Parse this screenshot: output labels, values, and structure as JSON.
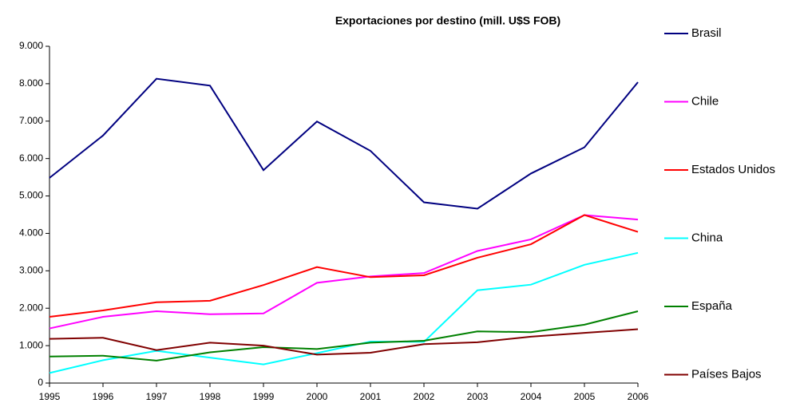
{
  "chart_data": {
    "type": "line",
    "title": "Exportaciones por destino (mill. U$S FOB)",
    "categories": [
      "1995",
      "1996",
      "1997",
      "1998",
      "1999",
      "2000",
      "2001",
      "2002",
      "2003",
      "2004",
      "2005",
      "2006"
    ],
    "series": [
      {
        "name": "Brasil",
        "color": "#000080",
        "values": [
          5484,
          6615,
          8133,
          7949,
          5690,
          6990,
          6206,
          4830,
          4660,
          5600,
          6300,
          8040
        ]
      },
      {
        "name": "Chile",
        "color": "#ff00ff",
        "values": [
          1460,
          1770,
          1920,
          1840,
          1860,
          2680,
          2850,
          2940,
          3530,
          3840,
          4490,
          4370
        ]
      },
      {
        "name": "Estados Unidos",
        "color": "#ff0000",
        "values": [
          1770,
          1940,
          2160,
          2200,
          2620,
          3100,
          2830,
          2880,
          3350,
          3710,
          4490,
          4040
        ]
      },
      {
        "name": "China",
        "color": "#00ffff",
        "values": [
          270,
          610,
          860,
          680,
          500,
          800,
          1110,
          1100,
          2480,
          2630,
          3160,
          3480
        ]
      },
      {
        "name": "España",
        "color": "#008000",
        "values": [
          710,
          730,
          600,
          820,
          960,
          910,
          1080,
          1130,
          1380,
          1360,
          1560,
          1920
        ]
      },
      {
        "name": "Países Bajos",
        "color": "#800000",
        "values": [
          1180,
          1210,
          880,
          1080,
          1000,
          760,
          810,
          1040,
          1090,
          1240,
          1340,
          1440
        ]
      }
    ],
    "ylim": [
      0,
      9000
    ],
    "yticks": [
      0,
      {
        "value": 1000,
        "label": "1.000"
      },
      {
        "value": 2000,
        "label": "2.000"
      },
      {
        "value": 3000,
        "label": "3.000"
      },
      {
        "value": 4000,
        "label": "4.000"
      },
      {
        "value": 5000,
        "label": "5.000"
      },
      {
        "value": 6000,
        "label": "6.000"
      },
      {
        "value": 7000,
        "label": "7.000"
      },
      {
        "value": 8000,
        "label": "8.000"
      },
      {
        "value": 9000,
        "label": "9.000"
      }
    ],
    "grid": false,
    "legend": "right"
  }
}
